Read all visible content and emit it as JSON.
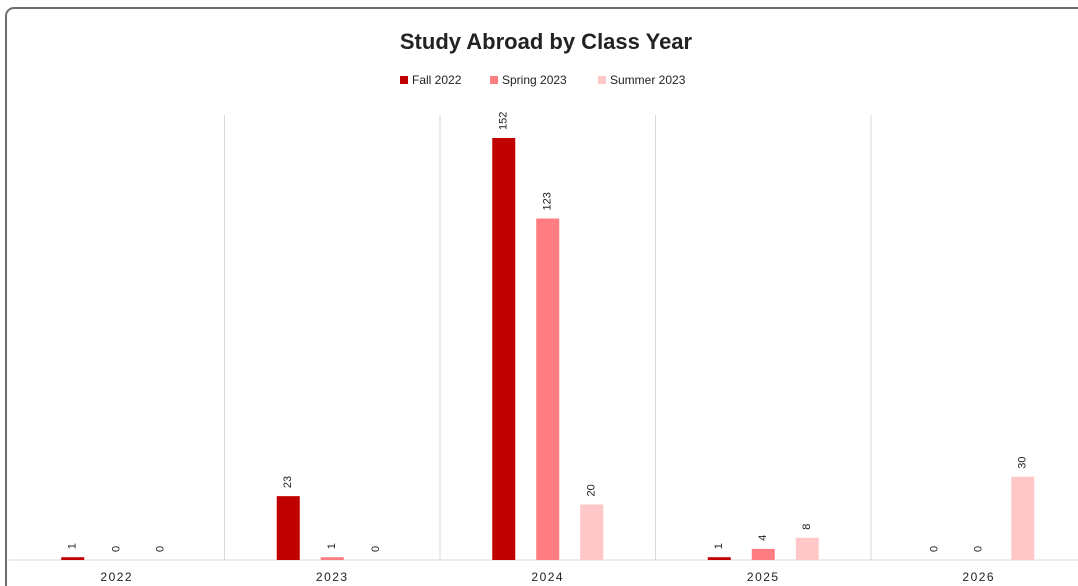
{
  "chart_data": {
    "type": "bar",
    "title": "Study Abroad by Class Year",
    "categories": [
      "2022",
      "2023",
      "2024",
      "2025",
      "2026"
    ],
    "series": [
      {
        "name": "Fall 2022",
        "color": "#c00000",
        "values": [
          1,
          23,
          152,
          1,
          0
        ]
      },
      {
        "name": "Spring 2023",
        "color": "#ff7c80",
        "values": [
          0,
          1,
          123,
          4,
          0
        ]
      },
      {
        "name": "Summer 2023",
        "color": "#ffc7c7",
        "values": [
          0,
          0,
          20,
          8,
          30
        ]
      }
    ],
    "grid": true
  }
}
